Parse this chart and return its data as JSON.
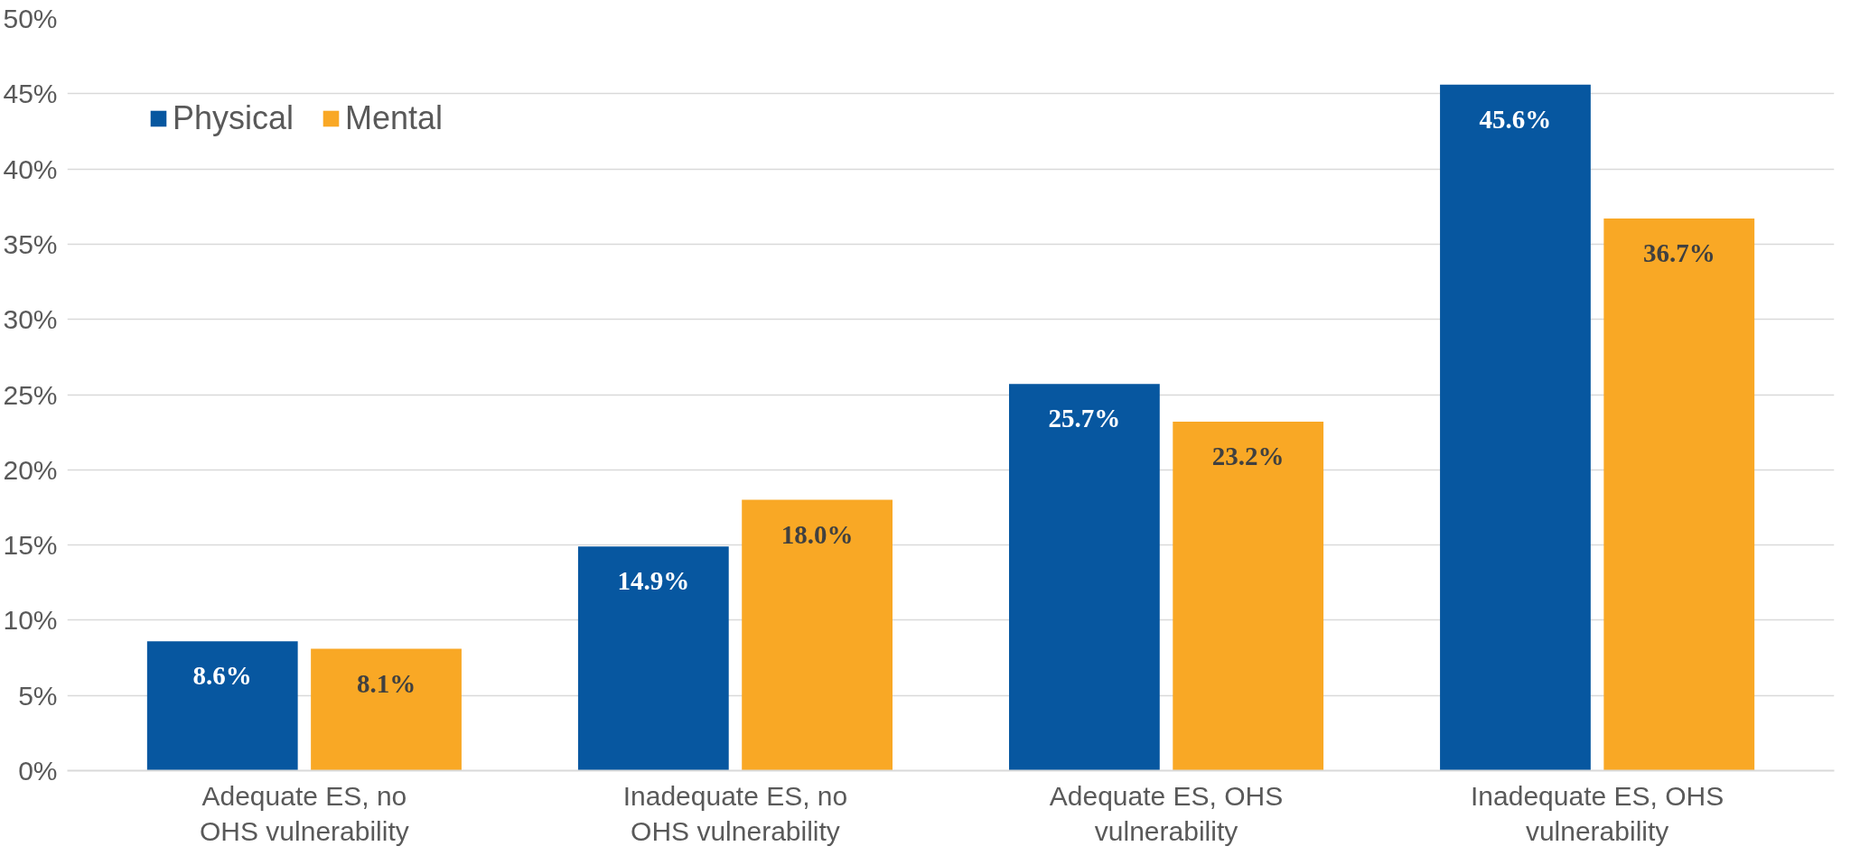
{
  "chart_data": {
    "type": "bar",
    "categories": [
      "Adequate ES, no OHS vulnerability",
      "Inadequate ES, no OHS vulnerability",
      "Adequate ES, OHS vulnerability",
      "Inadequate ES, OHS vulnerability"
    ],
    "series": [
      {
        "name": "Physical",
        "color": "#0757a0",
        "values": [
          8.6,
          14.9,
          25.7,
          45.6
        ],
        "value_labels": [
          "8.6%",
          "14.9%",
          "25.7%",
          "45.6%"
        ]
      },
      {
        "name": "Mental",
        "color": "#f9a825",
        "values": [
          8.1,
          18.0,
          23.2,
          36.7
        ],
        "value_labels": [
          "8.1%",
          "18.0%",
          "23.2%",
          "36.7%"
        ]
      }
    ],
    "ylim": [
      0,
      50
    ],
    "yticks": [
      {
        "value": 0,
        "label": "0%"
      },
      {
        "value": 5,
        "label": "5%"
      },
      {
        "value": 10,
        "label": "10%"
      },
      {
        "value": 15,
        "label": "15%"
      },
      {
        "value": 20,
        "label": "20%"
      },
      {
        "value": 25,
        "label": "25%"
      },
      {
        "value": 30,
        "label": "30%"
      },
      {
        "value": 35,
        "label": "35%"
      },
      {
        "value": 40,
        "label": "40%"
      },
      {
        "value": 45,
        "label": "45%"
      },
      {
        "value": 50,
        "label": "50%"
      }
    ],
    "grid": "y",
    "legend": "top left"
  }
}
